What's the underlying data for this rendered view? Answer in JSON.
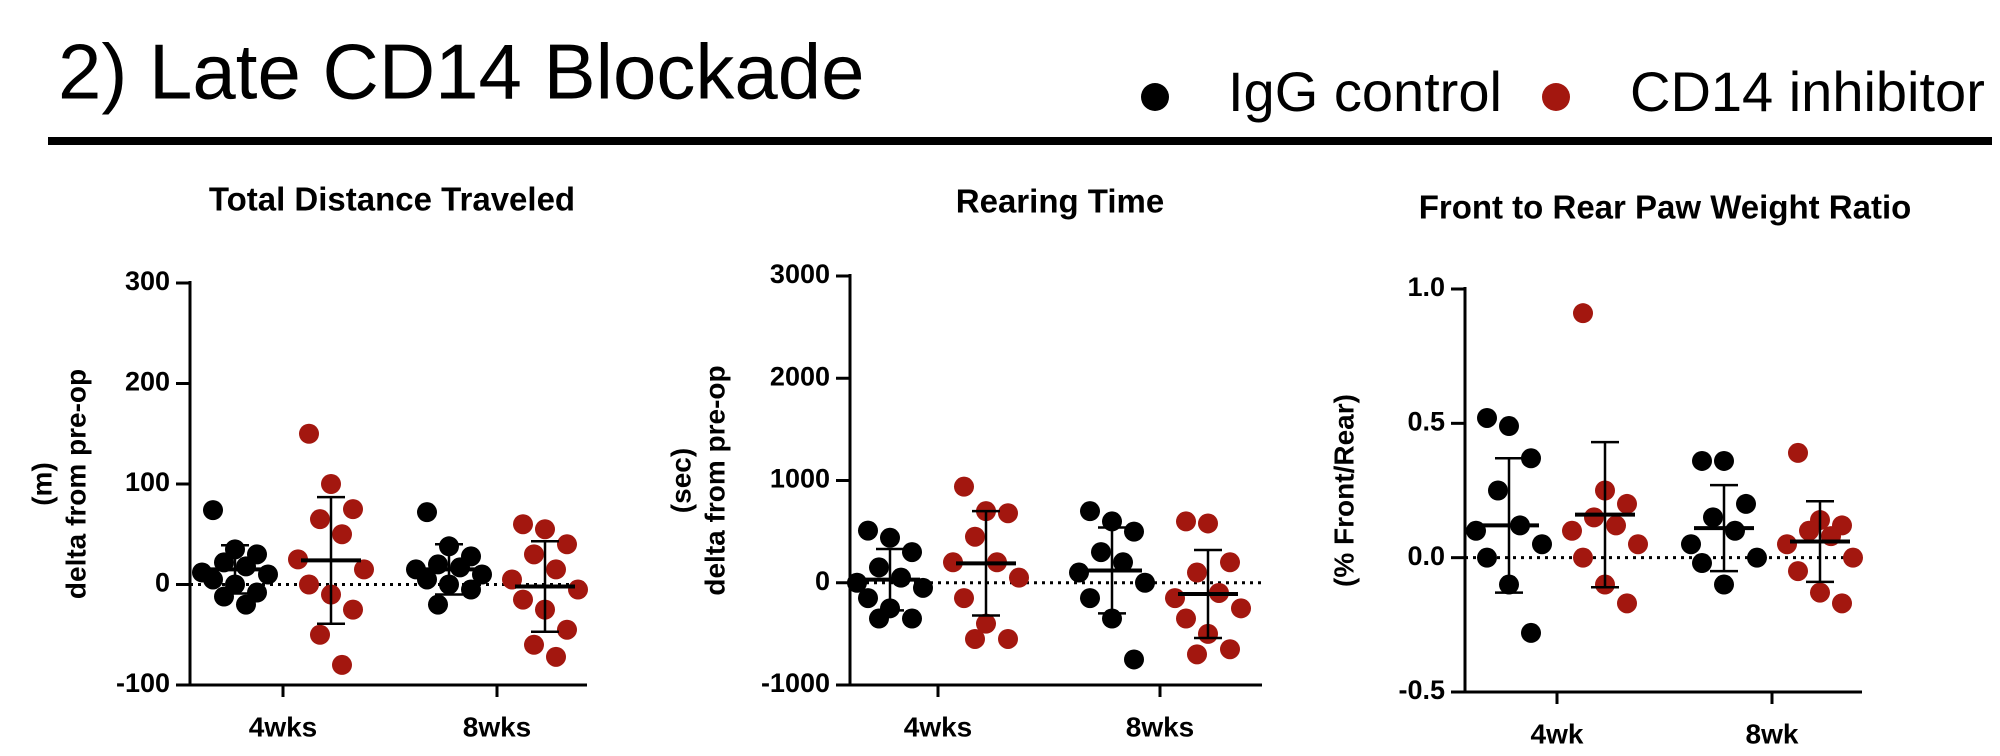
{
  "title": "2) Late CD14 Blockade",
  "legend": [
    {
      "name": "IgG control",
      "color": "#000000"
    },
    {
      "name": "CD14 inhibitor",
      "color": "#a3170f"
    }
  ],
  "chart_data": [
    {
      "type": "dot_plot",
      "title": "Total Distance Traveled",
      "ylabel": [
        "(m)",
        "delta from pre-op"
      ],
      "categories": [
        "4wks",
        "8wks"
      ],
      "ylim": [
        -100,
        300
      ],
      "yticks": [
        -100,
        0,
        100,
        200,
        300
      ],
      "zero_line": true,
      "series": [
        {
          "values": [
            [
              74,
              35,
              30,
              22,
              18,
              12,
              10,
              5,
              0,
              -8,
              -12,
              -20
            ],
            [
              72,
              38,
              28,
              20,
              17,
              15,
              10,
              5,
              0,
              -5,
              -20
            ]
          ],
          "means": [
            15,
            15
          ],
          "sds": [
            24,
            25
          ]
        },
        {
          "values": [
            [
              150,
              100,
              75,
              65,
              50,
              25,
              15,
              0,
              -10,
              -25,
              -50,
              -80
            ],
            [
              60,
              55,
              40,
              30,
              15,
              5,
              -5,
              -15,
              -25,
              -45,
              -60,
              -72
            ]
          ],
          "means": [
            24,
            -2
          ],
          "sds": [
            63,
            45
          ]
        }
      ]
    },
    {
      "type": "dot_plot",
      "title": "Rearing Time",
      "ylabel": [
        "(sec)",
        "delta from pre-op"
      ],
      "categories": [
        "4wks",
        "8wks"
      ],
      "ylim": [
        -1000,
        3000
      ],
      "yticks": [
        -1000,
        0,
        1000,
        2000,
        3000
      ],
      "zero_line": true,
      "series": [
        {
          "values": [
            [
              510,
              440,
              300,
              150,
              50,
              0,
              -50,
              -150,
              -250,
              -350,
              -350
            ],
            [
              700,
              600,
              500,
              300,
              200,
              100,
              0,
              -150,
              -350,
              -750
            ]
          ],
          "means": [
            30,
            120
          ],
          "sds": [
            300,
            420
          ]
        },
        {
          "values": [
            [
              940,
              700,
              680,
              450,
              200,
              200,
              50,
              -150,
              -400,
              -550,
              -550
            ],
            [
              600,
              580,
              200,
              100,
              -100,
              -150,
              -250,
              -350,
              -500,
              -650,
              -700
            ]
          ],
          "means": [
            190,
            -110
          ],
          "sds": [
            510,
            430
          ]
        }
      ]
    },
    {
      "type": "dot_plot",
      "title": "Front to Rear Paw Weight Ratio",
      "ylabel": [
        "(% Front/Rear)"
      ],
      "categories": [
        "4wk",
        "8wk"
      ],
      "ylim": [
        -0.5,
        1.0
      ],
      "yticks": [
        -0.5,
        {
          "value": 0,
          "label": "0.0"
        },
        0.5,
        {
          "value": 1,
          "label": "1.0"
        }
      ],
      "zero_line": true,
      "series": [
        {
          "values": [
            [
              0.52,
              0.49,
              0.37,
              0.25,
              0.12,
              0.1,
              0.05,
              0.0,
              -0.1,
              -0.28
            ],
            [
              0.36,
              0.36,
              0.2,
              0.15,
              0.1,
              0.05,
              0.0,
              -0.02,
              -0.1
            ]
          ],
          "means": [
            0.12,
            0.11
          ],
          "sds": [
            0.25,
            0.16
          ]
        },
        {
          "values": [
            [
              0.91,
              0.25,
              0.2,
              0.15,
              0.12,
              0.1,
              0.05,
              0.0,
              -0.1,
              -0.17
            ],
            [
              0.39,
              0.14,
              0.12,
              0.1,
              0.08,
              0.05,
              0.0,
              -0.05,
              -0.13,
              -0.17
            ]
          ],
          "means": [
            0.16,
            0.06
          ],
          "sds": [
            0.27,
            0.15
          ]
        }
      ]
    }
  ]
}
